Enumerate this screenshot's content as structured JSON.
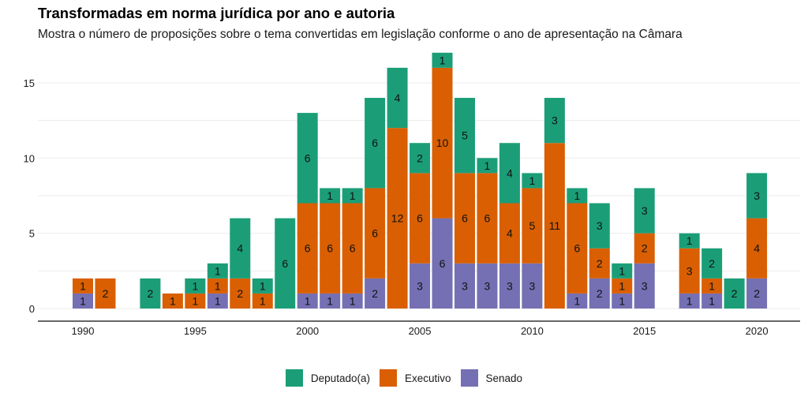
{
  "chart_data": {
    "type": "bar",
    "stacked": true,
    "title": "Transformadas em norma jurídica por ano e autoria",
    "subtitle": "Mostra o número de proposições sobre o tema convertidas em legislação conforme o ano de apresentação na Câmara",
    "xlabel": "",
    "ylabel": "",
    "x_ticks": [
      1990,
      1995,
      2000,
      2005,
      2010,
      2015,
      2020
    ],
    "y_ticks": [
      0,
      5,
      10,
      15
    ],
    "ylim": [
      0,
      17
    ],
    "xlim": [
      1989,
      2021
    ],
    "grid": true,
    "legend_position": "bottom",
    "categories": [
      1990,
      1991,
      1993,
      1994,
      1995,
      1996,
      1997,
      1998,
      1999,
      2000,
      2001,
      2002,
      2003,
      2004,
      2005,
      2006,
      2007,
      2008,
      2009,
      2010,
      2011,
      2012,
      2013,
      2014,
      2015,
      2017,
      2018,
      2019,
      2020
    ],
    "series": [
      {
        "name": "Senado",
        "color": "#7570b3",
        "values": [
          1,
          0,
          0,
          0,
          0,
          1,
          0,
          0,
          0,
          1,
          1,
          1,
          2,
          0,
          3,
          6,
          3,
          3,
          3,
          3,
          0,
          1,
          2,
          1,
          3,
          1,
          1,
          0,
          2
        ]
      },
      {
        "name": "Executivo",
        "color": "#d95f02",
        "values": [
          1,
          2,
          0,
          1,
          1,
          1,
          2,
          1,
          0,
          6,
          6,
          6,
          6,
          12,
          6,
          10,
          6,
          6,
          4,
          5,
          11,
          6,
          2,
          1,
          2,
          3,
          1,
          0,
          4
        ]
      },
      {
        "name": "Deputado(a)",
        "color": "#1b9e77",
        "values": [
          0,
          0,
          2,
          0,
          1,
          1,
          4,
          1,
          6,
          6,
          1,
          1,
          6,
          4,
          2,
          1,
          5,
          1,
          4,
          1,
          3,
          1,
          3,
          1,
          3,
          1,
          2,
          2,
          3
        ]
      }
    ]
  },
  "legend": [
    {
      "label": "Deputado(a)",
      "color": "#1b9e77"
    },
    {
      "label": "Executivo",
      "color": "#d95f02"
    },
    {
      "label": "Senado",
      "color": "#7570b3"
    }
  ]
}
